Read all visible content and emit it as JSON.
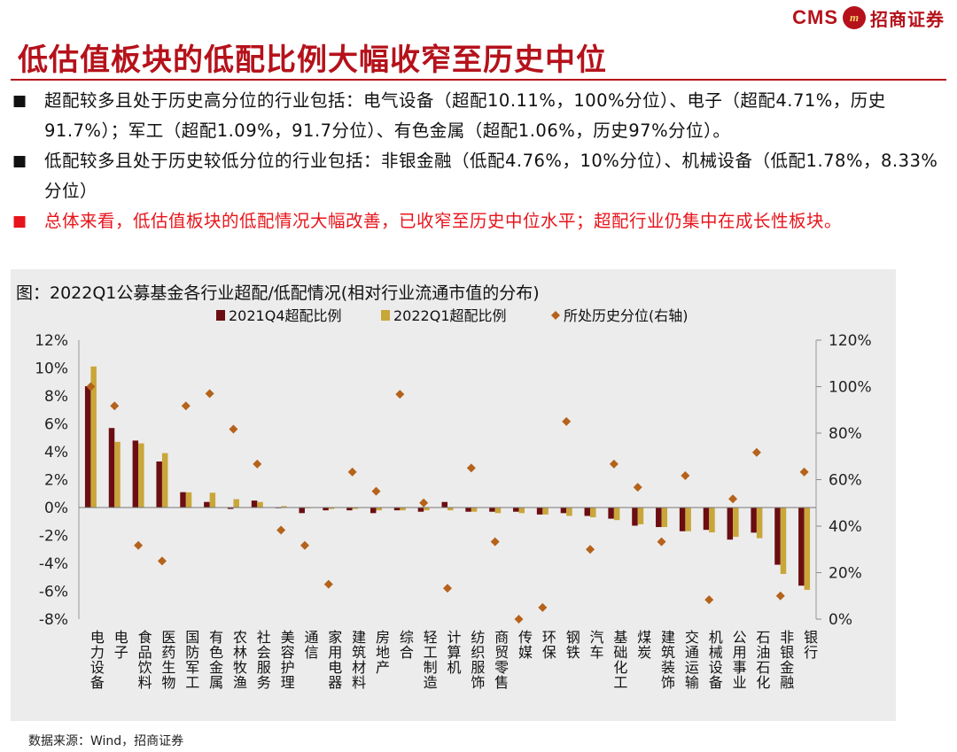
{
  "header": {
    "logo_text": "CMS",
    "logo_mark": "m",
    "logo_cn": "招商证券",
    "title": "低估值板块的低配比例大幅收窄至历史中位"
  },
  "bullets": [
    {
      "mark": "■",
      "text": "超配较多且处于历史高分位的行业包括：电气设备（超配10.11%，100%分位）、电子（超配4.71%，历史91.7%）；军工（超配1.09%，91.7分位）、有色金属（超配1.06%，历史97%分位）。"
    },
    {
      "mark": "■",
      "text": "低配较多且处于历史较低分位的行业包括：非银金融（低配4.76%，10%分位）、机械设备（低配1.78%，8.33%分位）"
    },
    {
      "mark": "■",
      "text": "总体来看，低估值板块的低配情况大幅改善，已收窄至历史中位水平；超配行业仍集中在成长性板块。"
    }
  ],
  "source": "数据来源：Wind，招商证券",
  "chart_data": {
    "type": "bar",
    "title": "图：2022Q1公募基金各行业超配/低配情况(相对行业流通市值的分布)",
    "categories": [
      "电力设备",
      "电子",
      "食品饮料",
      "医药生物",
      "国防军工",
      "有色金属",
      "农林牧渔",
      "社会服务",
      "美容护理",
      "通信",
      "家用电器",
      "建筑材料",
      "房地产",
      "综合",
      "轻工制造",
      "计算机",
      "纺织服饰",
      "商贸零售",
      "传媒",
      "环保",
      "钢铁",
      "汽车",
      "基础化工",
      "煤炭",
      "建筑装饰",
      "交通运输",
      "机械设备",
      "公用事业",
      "石油石化",
      "非银金融",
      "银行"
    ],
    "series": [
      {
        "name": "2021Q4超配比例",
        "kind": "bar",
        "color": "#6b0d12",
        "values": [
          8.7,
          5.7,
          4.8,
          3.3,
          1.1,
          0.4,
          -0.1,
          0.5,
          0.0,
          -0.4,
          -0.2,
          -0.2,
          -0.4,
          -0.2,
          -0.3,
          0.4,
          -0.3,
          -0.3,
          -0.3,
          -0.5,
          -0.4,
          -0.6,
          -0.8,
          -1.3,
          -1.4,
          -1.7,
          -1.6,
          -2.3,
          -1.8,
          -4.1,
          -5.6
        ]
      },
      {
        "name": "2022Q1超配比例",
        "kind": "bar",
        "color": "#c9a63a",
        "values": [
          10.11,
          4.71,
          4.6,
          3.9,
          1.09,
          1.06,
          0.6,
          0.4,
          0.1,
          0.0,
          -0.1,
          -0.1,
          -0.2,
          -0.2,
          -0.2,
          -0.2,
          -0.3,
          -0.4,
          -0.4,
          -0.5,
          -0.6,
          -0.7,
          -0.9,
          -1.2,
          -1.4,
          -1.7,
          -1.78,
          -2.1,
          -2.2,
          -4.76,
          -5.9
        ]
      },
      {
        "name": "所处历史分位(右轴)",
        "kind": "scatter",
        "color": "#b5621b",
        "axis": "right",
        "values": [
          100,
          91.7,
          31.7,
          25,
          91.7,
          97,
          81.7,
          66.7,
          38.3,
          31.7,
          15,
          63.3,
          55,
          96.7,
          50,
          13.3,
          65,
          33.3,
          0,
          5,
          85,
          30,
          66.7,
          56.7,
          33.3,
          61.7,
          8.33,
          51.7,
          71.7,
          10,
          63.3
        ]
      }
    ],
    "ylim": [
      -8,
      12
    ],
    "y_ticks": [
      "12%",
      "10%",
      "8%",
      "6%",
      "4%",
      "2%",
      "0%",
      "-2%",
      "-4%",
      "-6%",
      "-8%"
    ],
    "y2lim": [
      0,
      120
    ],
    "y2_ticks": [
      "120%",
      "100%",
      "80%",
      "60%",
      "40%",
      "20%",
      "0%"
    ],
    "legend_position": "top-center",
    "grid": false,
    "background": "#ececec"
  }
}
